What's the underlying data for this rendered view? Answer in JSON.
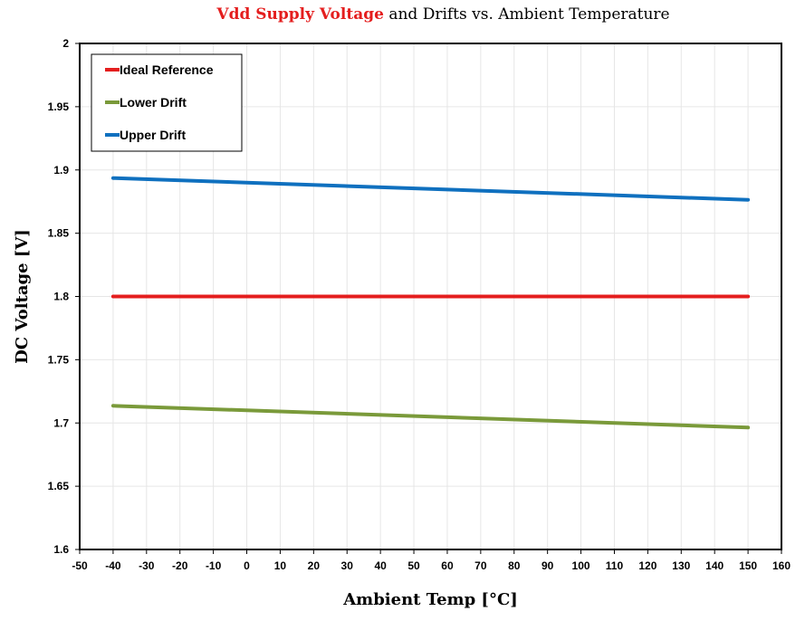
{
  "chart_data": {
    "type": "line",
    "title_accent": "Vdd  Supply Voltage",
    "title_rest": " and Drifts vs. Ambient Temperature",
    "xlabel": "Ambient Temp [°C]",
    "ylabel": "DC Voltage [V]",
    "xlim": [
      -50,
      160
    ],
    "ylim": [
      1.6,
      2.0
    ],
    "xticks": [
      "-50",
      "-40",
      "-30",
      "-20",
      "-10",
      "0",
      "10",
      "20",
      "30",
      "40",
      "50",
      "60",
      "70",
      "80",
      "90",
      "100",
      "110",
      "120",
      "130",
      "140",
      "150",
      "160"
    ],
    "yticks": [
      "1.6",
      "1.65",
      "1.7",
      "1.75",
      "1.8",
      "1.85",
      "1.9",
      "1.95",
      "2"
    ],
    "grid": true,
    "legend_position": "top-left",
    "series": [
      {
        "name": "Ideal Reference",
        "color": "#e41e1e",
        "x": [
          -40,
          150
        ],
        "y": [
          1.8,
          1.8
        ]
      },
      {
        "name": "Lower Drift",
        "color": "#7a9a3a",
        "x": [
          -40,
          150
        ],
        "y": [
          1.7136,
          1.6964
        ]
      },
      {
        "name": "Upper Drift",
        "color": "#0f70bf",
        "x": [
          -40,
          150
        ],
        "y": [
          1.8936,
          1.8764
        ]
      }
    ]
  }
}
